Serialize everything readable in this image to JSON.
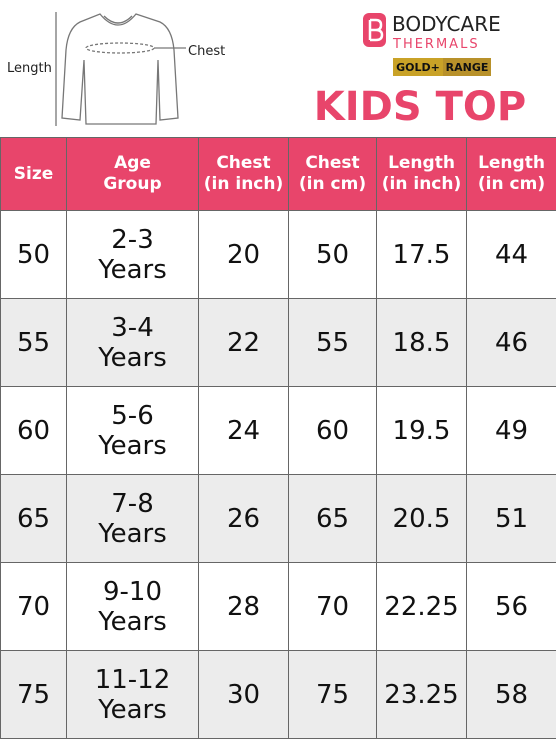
{
  "header": {
    "diagram": {
      "length_label": "Length",
      "chest_label": "Chest"
    },
    "brand": "BODYCARE",
    "sub_brand": "THERMALS",
    "badge": [
      "GOLD+",
      "RANGE"
    ],
    "title": "KIDS TOP"
  },
  "table": {
    "columns": [
      [
        "Size"
      ],
      [
        "Age",
        "Group"
      ],
      [
        "Chest",
        "(in inch)"
      ],
      [
        "Chest",
        "(in cm)"
      ],
      [
        "Length",
        "(in inch)"
      ],
      [
        "Length",
        "(in cm)"
      ]
    ],
    "rows": [
      [
        50,
        [
          "2-3",
          "Years"
        ],
        20,
        50,
        17.5,
        44
      ],
      [
        55,
        [
          "3-4",
          "Years"
        ],
        22,
        55,
        18.5,
        46
      ],
      [
        60,
        [
          "5-6",
          "Years"
        ],
        24,
        60,
        19.5,
        49
      ],
      [
        65,
        [
          "7-8",
          "Years"
        ],
        26,
        65,
        20.5,
        51
      ],
      [
        70,
        [
          "9-10",
          "Years"
        ],
        28,
        70,
        22.25,
        56
      ],
      [
        75,
        [
          "11-12",
          "Years"
        ],
        30,
        75,
        23.25,
        58
      ]
    ]
  }
}
